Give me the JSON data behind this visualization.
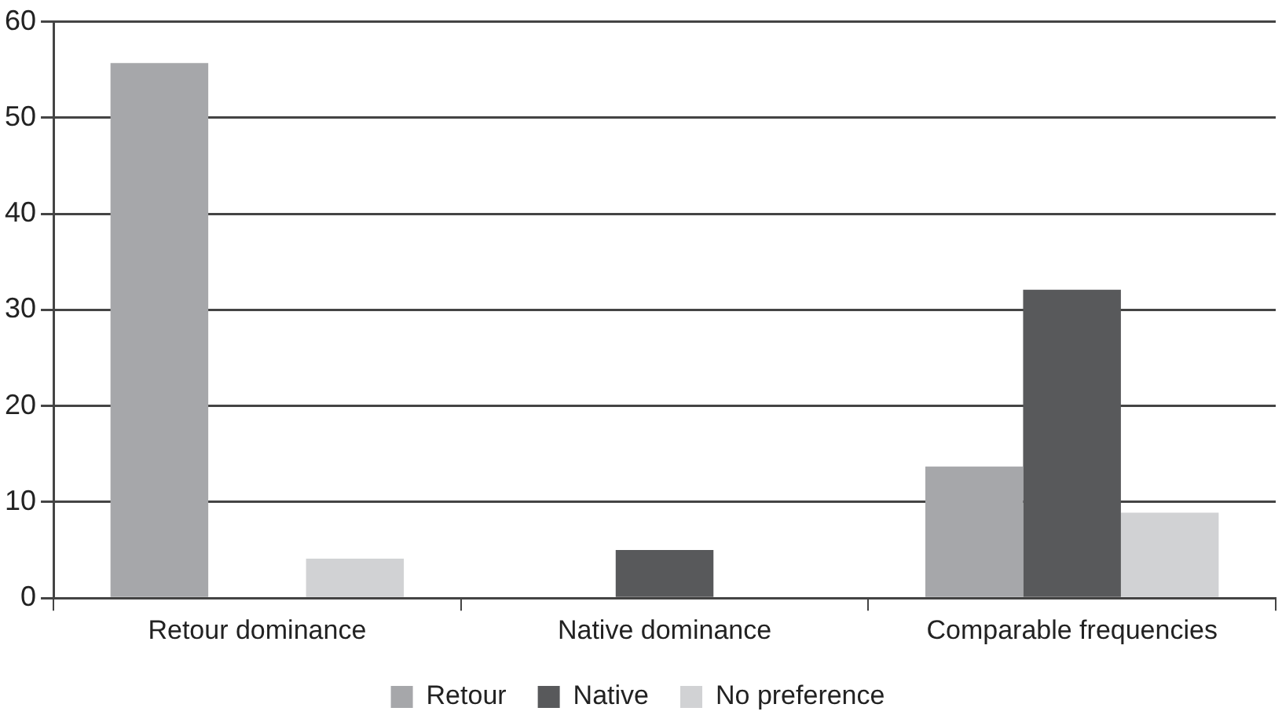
{
  "chart_data": {
    "type": "bar",
    "categories": [
      "Retour dominance",
      "Native dominance",
      "Comparable frequencies"
    ],
    "series": [
      {
        "name": "Retour",
        "color": "#a6a7aa",
        "values": [
          55.7,
          0,
          13.7
        ]
      },
      {
        "name": "Native",
        "color": "#58595b",
        "values": [
          0,
          5,
          32.1
        ]
      },
      {
        "name": "No preference",
        "color": "#d1d2d4",
        "values": [
          4.1,
          0,
          8.9
        ]
      }
    ],
    "ylim": [
      0,
      60
    ],
    "yticks": [
      0,
      10,
      20,
      30,
      40,
      50,
      60
    ],
    "grid": "y",
    "legend": "bottom"
  }
}
